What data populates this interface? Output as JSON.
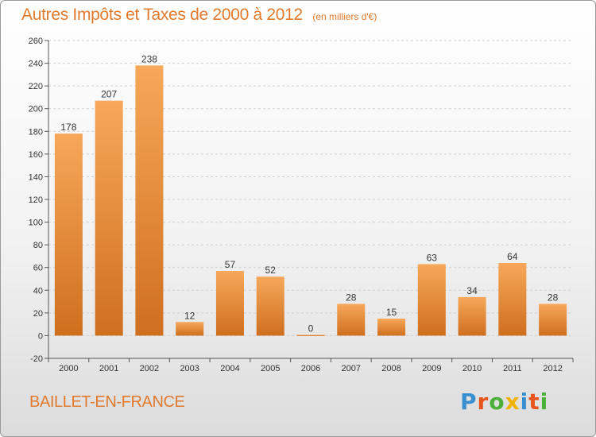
{
  "title": "Autres Impôts et Taxes de 2000 à 2012",
  "subtitle": "(en milliers d'€)",
  "town": "BAILLET-EN-FRANCE",
  "logo": {
    "text": "Proxiti",
    "colors": [
      "#3a8fd0",
      "#e8541c",
      "#4caf3a",
      "#f0b400",
      "#3a8fd0",
      "#e8541c",
      "#4caf3a"
    ]
  },
  "colors": {
    "bar_light": "#f7a85a",
    "bar_dark": "#cf6f1e",
    "accent": "#e07a2e",
    "grid": "#cfcfcf"
  },
  "chart_data": {
    "type": "bar",
    "title": "Autres Impôts et Taxes de 2000 à 2012",
    "subtitle": "(en milliers d'€)",
    "categories": [
      "2000",
      "2001",
      "2002",
      "2003",
      "2004",
      "2005",
      "2006",
      "2007",
      "2008",
      "2009",
      "2010",
      "2011",
      "2012"
    ],
    "values": [
      178,
      207,
      238,
      12,
      57,
      52,
      0,
      28,
      15,
      63,
      34,
      64,
      28
    ],
    "ylim": [
      -20,
      260
    ],
    "yticks": [
      -20,
      0,
      20,
      40,
      60,
      80,
      100,
      120,
      140,
      160,
      180,
      200,
      220,
      240,
      260
    ],
    "grid": true,
    "legend": "none"
  }
}
